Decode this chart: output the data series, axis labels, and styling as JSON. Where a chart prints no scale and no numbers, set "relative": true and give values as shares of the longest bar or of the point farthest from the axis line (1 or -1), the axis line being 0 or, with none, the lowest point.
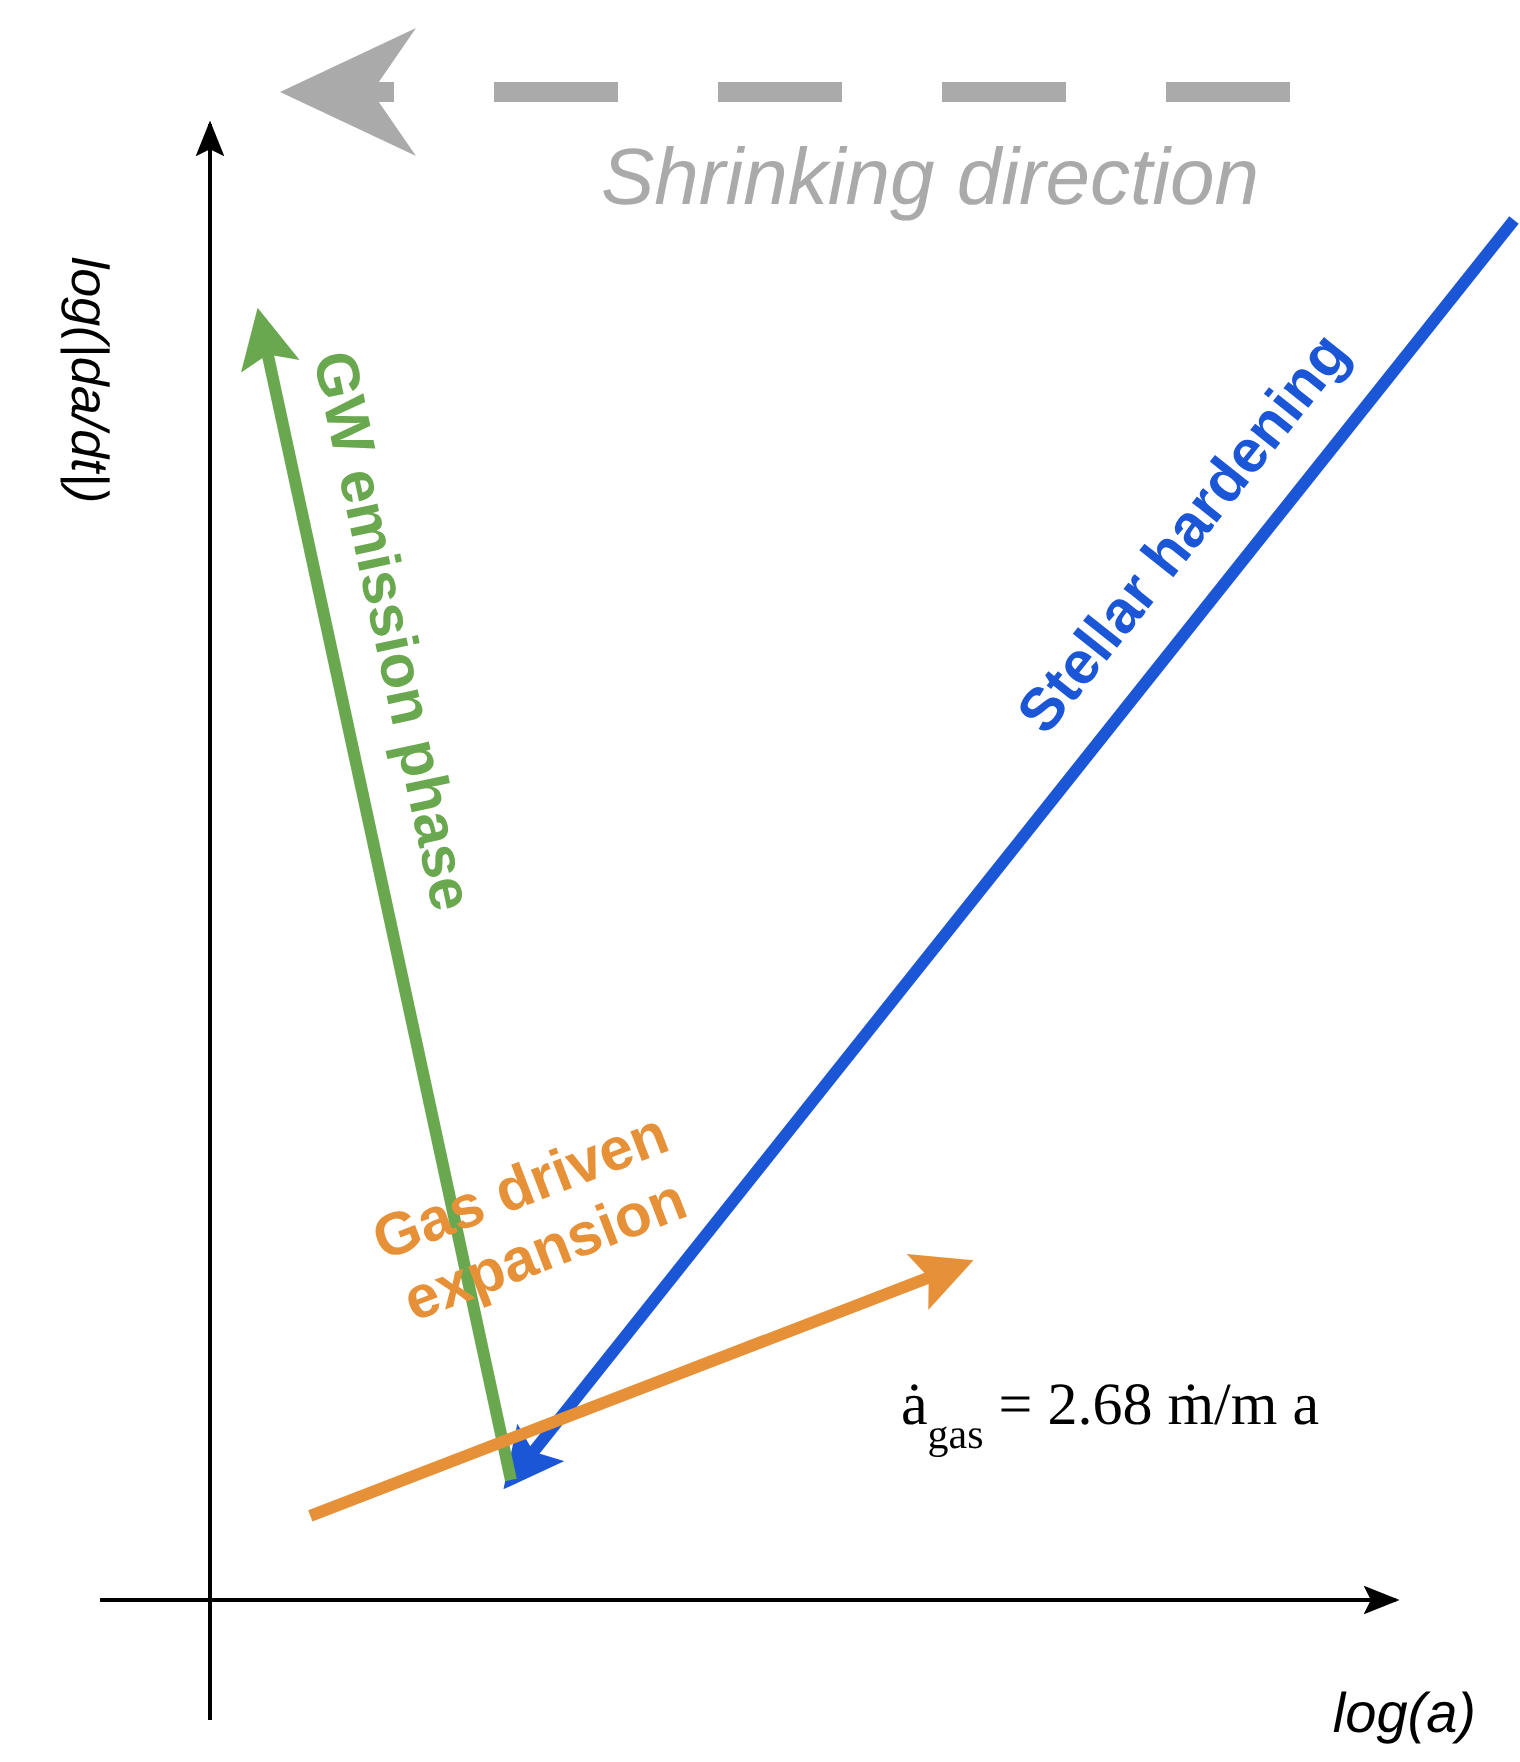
{
  "chart_data": {
    "type": "line",
    "relative": true,
    "xlabel": "log(a)",
    "ylabel": "log(|da/dt|)",
    "marker": "none",
    "line_style": "solid",
    "categories": [
      null,
      null,
      null,
      null,
      null,
      null,
      null,
      null,
      null,
      null,
      null,
      null,
      null,
      null,
      null,
      null,
      null,
      null,
      null,
      null,
      null,
      null,
      null,
      null,
      null,
      null,
      null
    ],
    "series": [
      {
        "name": "Stellar hardening",
        "color": "#1a56d6",
        "values": [
          null,
          null,
          null,
          null,
          null,
          null,
          0.087,
          null,
          null,
          null,
          null,
          null,
          null,
          null,
          null,
          null,
          null,
          null,
          null,
          null,
          null,
          null,
          null,
          null,
          null,
          null,
          1.0
        ]
      },
      {
        "name": "GW emission phase",
        "color": "#6aa84f",
        "values": [
          null,
          0.928,
          null,
          null,
          null,
          null,
          0.087,
          null,
          null,
          null,
          null,
          null,
          null,
          null,
          null,
          null,
          null,
          null,
          null,
          null,
          null,
          null,
          null,
          null,
          null,
          null,
          null
        ]
      },
      {
        "name": "Gas driven expansion",
        "color": "#e69138",
        "values": [
          null,
          null,
          0.061,
          null,
          null,
          null,
          null,
          null,
          null,
          null,
          null,
          null,
          null,
          null,
          null,
          0.243,
          null,
          null,
          null,
          null,
          null,
          null,
          null,
          null,
          null,
          null,
          null
        ]
      }
    ],
    "annotations": [
      "Shrinking direction",
      "ȧ$_{gas}$ = 2.68 ṁ/m a"
    ]
  }
}
